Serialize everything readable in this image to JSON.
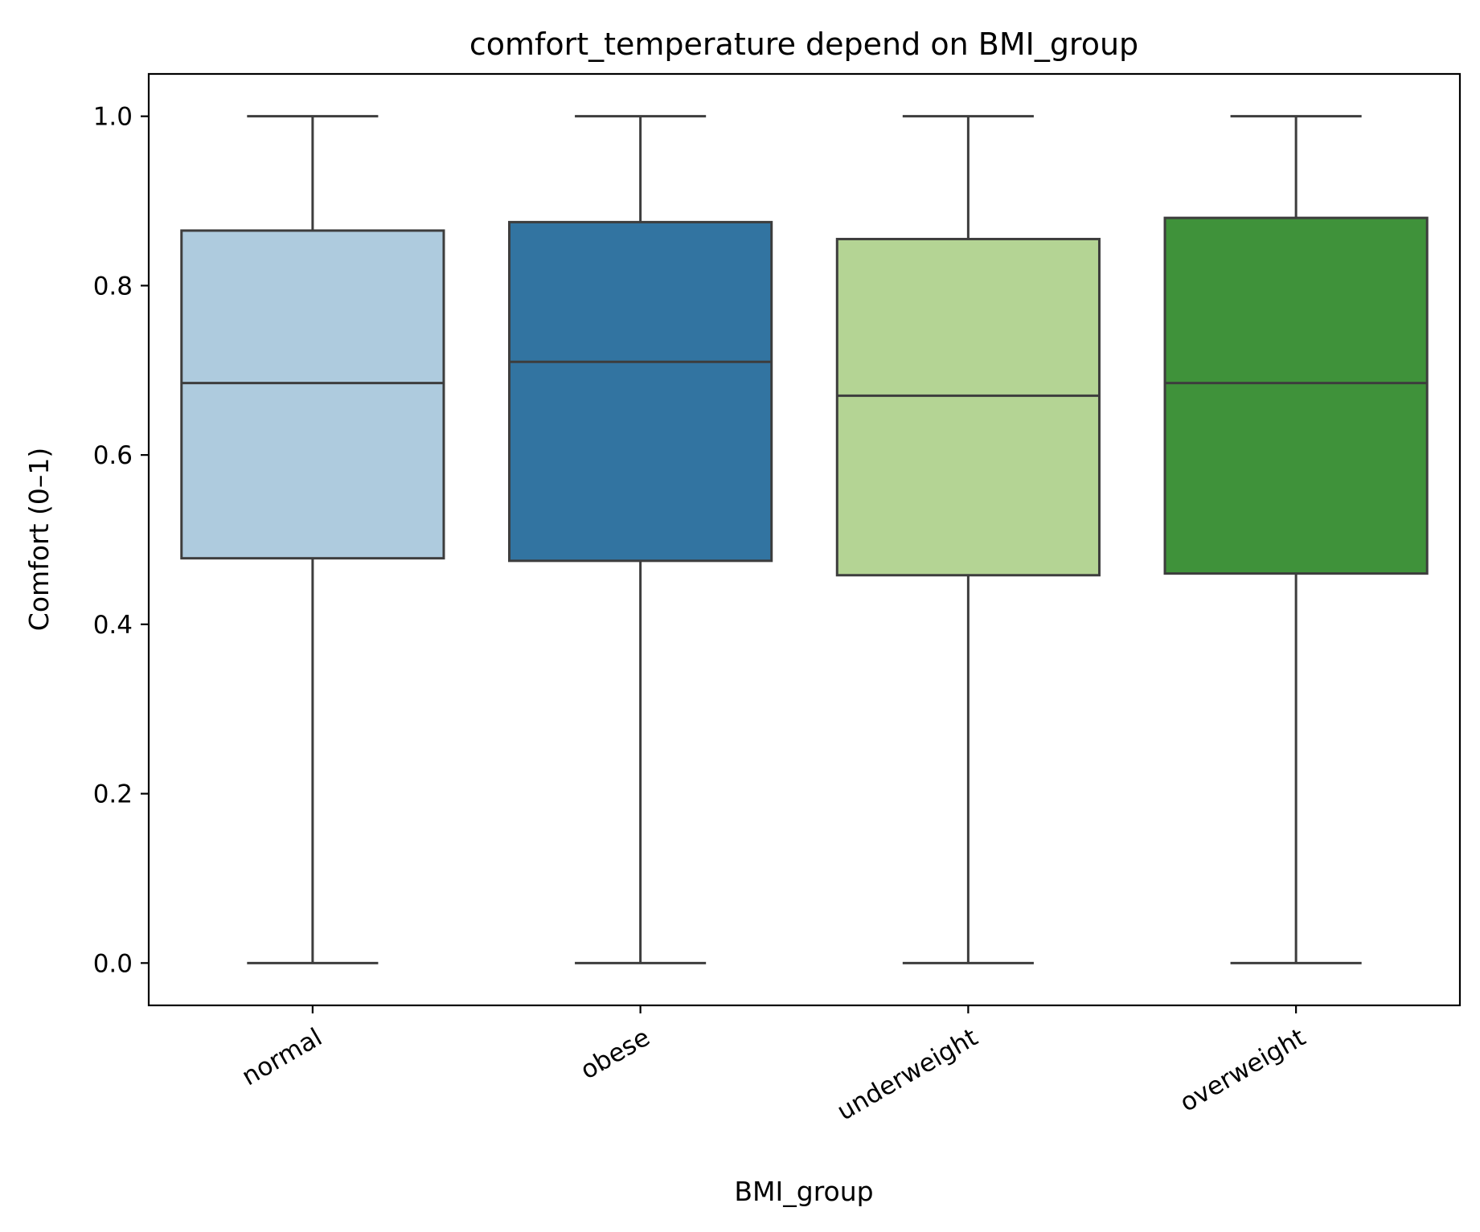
{
  "chart_data": {
    "type": "box",
    "title": "comfort_temperature depend on BMI_group",
    "xlabel": "BMI_group",
    "ylabel": "Comfort (0–1)",
    "ylim": [
      -0.05,
      1.05
    ],
    "yticks": [
      "0.0",
      "0.2",
      "0.4",
      "0.6",
      "0.8",
      "1.0"
    ],
    "grid": false,
    "categories": [
      "normal",
      "obese",
      "underweight",
      "overweight"
    ],
    "colors": [
      "#aecbde",
      "#3274a1",
      "#b4d494",
      "#3f923a"
    ],
    "boxes": [
      {
        "category": "normal",
        "min": 0.0,
        "q1": 0.478,
        "median": 0.685,
        "q3": 0.865,
        "max": 1.0
      },
      {
        "category": "obese",
        "min": 0.0,
        "q1": 0.475,
        "median": 0.71,
        "q3": 0.875,
        "max": 1.0
      },
      {
        "category": "underweight",
        "min": 0.0,
        "q1": 0.458,
        "median": 0.67,
        "q3": 0.855,
        "max": 1.0
      },
      {
        "category": "overweight",
        "min": 0.0,
        "q1": 0.46,
        "median": 0.685,
        "q3": 0.88,
        "max": 1.0
      }
    ]
  }
}
